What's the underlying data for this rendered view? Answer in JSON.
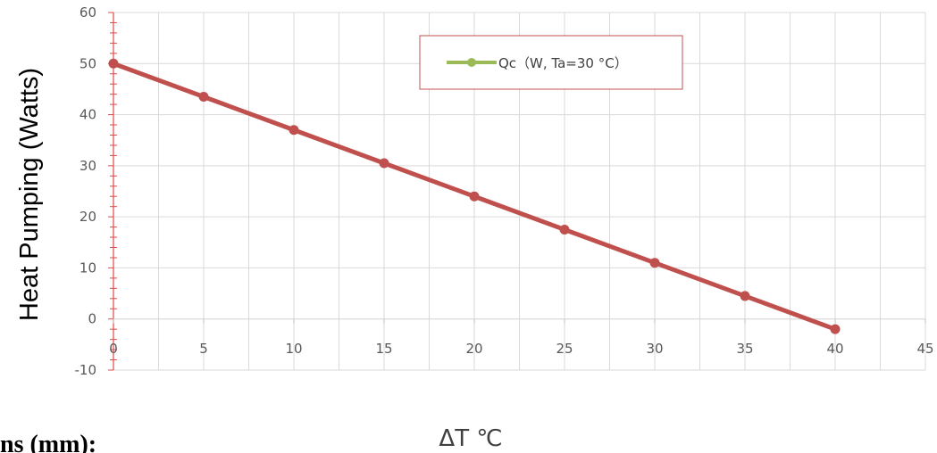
{
  "chart_data": {
    "type": "line",
    "title": "",
    "xlabel": "ΔT ℃",
    "ylabel": "Heat Pumping (Watts)",
    "xlim": [
      0,
      45
    ],
    "ylim": [
      -10,
      60
    ],
    "x_ticks": [
      0,
      5,
      10,
      15,
      20,
      25,
      30,
      35,
      40,
      45
    ],
    "y_ticks": [
      -10,
      0,
      10,
      20,
      30,
      40,
      50,
      60
    ],
    "x_tick_labels": [
      "0",
      "5",
      "10",
      "15",
      "20",
      "25",
      "30",
      "35",
      "40",
      "45"
    ],
    "y_tick_labels": [
      "-10",
      "0",
      "10",
      "20",
      "30",
      "40",
      "50",
      "60"
    ],
    "grid": true,
    "legend_position": "top-right",
    "series": [
      {
        "name": "Qc（W, Ta=30 °C）",
        "color": "#c0504d",
        "legend_color": "#9bbb59",
        "x": [
          0,
          5,
          10,
          15,
          20,
          25,
          30,
          35,
          40
        ],
        "y": [
          50,
          43.5,
          37,
          30.5,
          24,
          17.5,
          11,
          4.5,
          -2
        ]
      }
    ]
  },
  "page": {
    "bottom_text": "ns (mm):"
  }
}
